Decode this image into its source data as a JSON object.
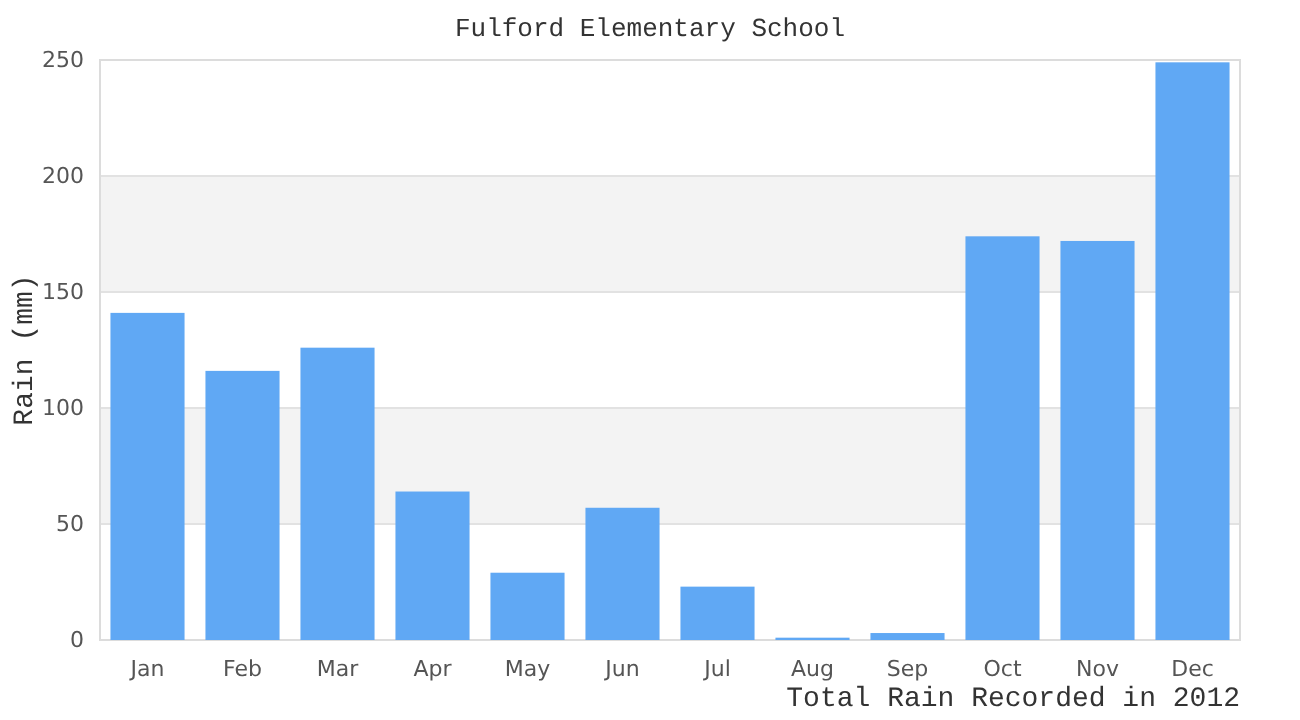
{
  "chart_data": {
    "type": "bar",
    "title": "Fulford Elementary School",
    "xlabel": "Total Rain Recorded in 2012",
    "ylabel": "Rain (mm)",
    "categories": [
      "Jan",
      "Feb",
      "Mar",
      "Apr",
      "May",
      "Jun",
      "Jul",
      "Aug",
      "Sep",
      "Oct",
      "Nov",
      "Dec"
    ],
    "values": [
      141,
      116,
      126,
      64,
      29,
      57,
      23,
      1,
      3,
      174,
      172,
      249
    ],
    "color": "#60a8f4",
    "ylim": [
      0,
      250
    ],
    "yticks": [
      0,
      50,
      100,
      150,
      200,
      250
    ],
    "grid": "y"
  }
}
